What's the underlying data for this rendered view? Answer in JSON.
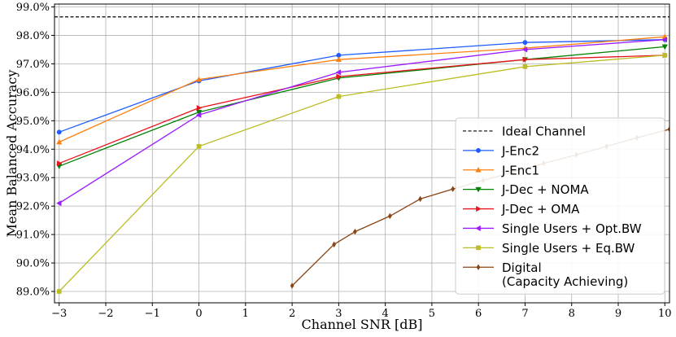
{
  "chart_data": {
    "type": "line",
    "xlabel": "Channel SNR [dB]",
    "ylabel": "Mean Balanced Accuracy",
    "xlim": [
      -3.1,
      10.1
    ],
    "ylim": [
      88.6,
      99.1
    ],
    "xticks": [
      -3,
      -2,
      -1,
      0,
      1,
      2,
      3,
      4,
      5,
      6,
      7,
      8,
      9,
      10
    ],
    "yticks": [
      89.0,
      90.0,
      91.0,
      92.0,
      93.0,
      94.0,
      95.0,
      96.0,
      97.0,
      98.0,
      99.0
    ],
    "ytick_labels": [
      "89.0%",
      "90.0%",
      "91.0%",
      "92.0%",
      "93.0%",
      "94.0%",
      "95.0%",
      "96.0%",
      "97.0%",
      "98.0%",
      "99.0%"
    ],
    "grid": true,
    "legend_position": "lower-right",
    "reference_line": {
      "name": "Ideal Channel",
      "y": 98.65,
      "color": "#000000"
    },
    "series": [
      {
        "name": "J-Enc2",
        "color": "#1f5cff",
        "marker": "circle",
        "x": [
          -3,
          0,
          3,
          7,
          10
        ],
        "y": [
          94.6,
          96.4,
          97.3,
          97.75,
          97.85
        ]
      },
      {
        "name": "J-Enc1",
        "color": "#ff7f0e",
        "marker": "triangle-up",
        "x": [
          -3,
          0,
          3,
          7,
          10
        ],
        "y": [
          94.25,
          96.45,
          97.15,
          97.55,
          97.95
        ]
      },
      {
        "name": "J-Dec + NOMA",
        "color": "#008000",
        "marker": "triangle-down",
        "x": [
          -3,
          0,
          3,
          7,
          10
        ],
        "y": [
          93.4,
          95.3,
          96.5,
          97.15,
          97.6
        ]
      },
      {
        "name": "J-Dec + OMA",
        "color": "#e8141c",
        "marker": "triangle-right",
        "x": [
          -3,
          0,
          3,
          7,
          10
        ],
        "y": [
          93.5,
          95.45,
          96.55,
          97.15,
          97.3
        ]
      },
      {
        "name": "Single Users + Opt.BW",
        "color": "#9b1cff",
        "marker": "triangle-left",
        "x": [
          -3,
          0,
          3,
          7,
          10
        ],
        "y": [
          92.1,
          95.2,
          96.7,
          97.5,
          97.85
        ]
      },
      {
        "name": "Single Users + Eq.BW",
        "color": "#bcbd22",
        "marker": "square",
        "x": [
          -3,
          0,
          3,
          7,
          10
        ],
        "y": [
          89.0,
          94.1,
          95.85,
          96.9,
          97.3
        ]
      },
      {
        "name": "Digital\n(Capacity Achieving)",
        "color": "#8b4513",
        "marker": "diamond",
        "x": [
          2.0,
          2.9,
          3.35,
          4.1,
          4.75,
          5.45,
          6.1,
          6.75,
          7.4,
          8.1,
          8.75,
          9.4,
          10.1
        ],
        "y": [
          89.2,
          90.65,
          91.1,
          91.65,
          92.25,
          92.6,
          92.9,
          93.2,
          93.5,
          93.8,
          94.1,
          94.4,
          94.7
        ]
      }
    ]
  }
}
